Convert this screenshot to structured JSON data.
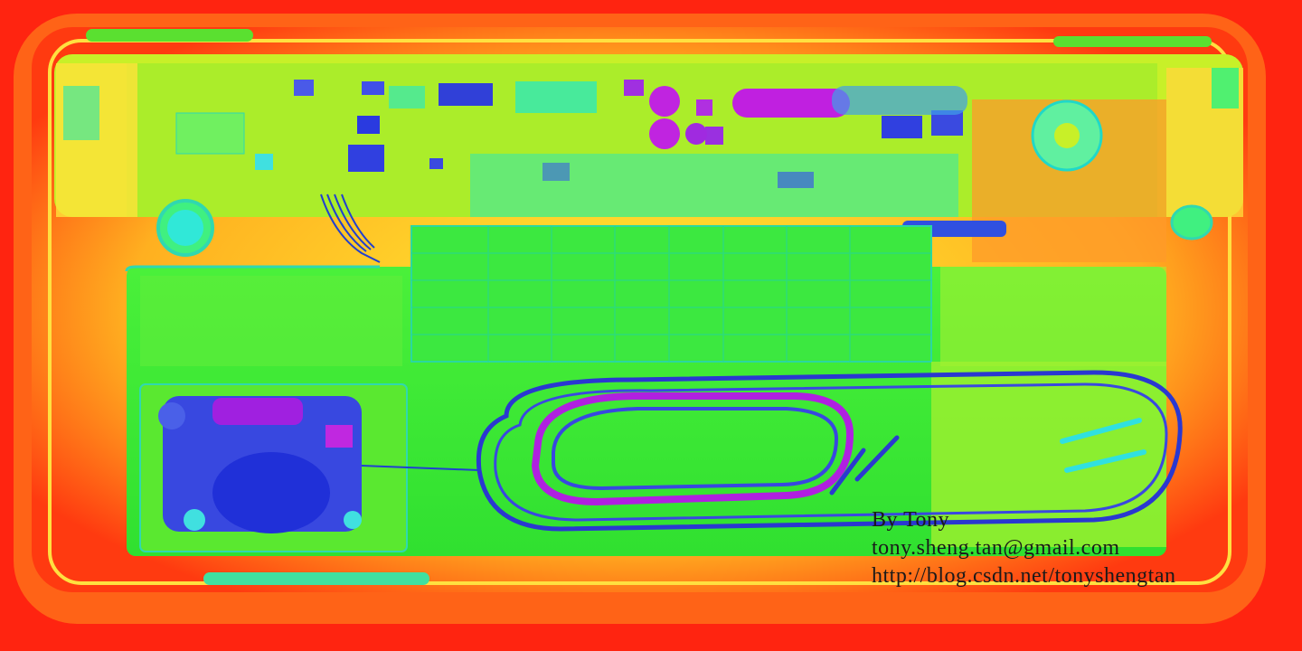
{
  "image": {
    "subject": "xray-false-color-laptop-interior",
    "colors": {
      "background": "#ff2a10",
      "chassis": "#ffcc1a",
      "board": "#b8f020",
      "battery": "#3cf02a",
      "components_dark": "#3040e0",
      "components_magenta": "#c020e0",
      "cyan": "#20e0d0"
    }
  },
  "watermark": {
    "author": "By Tony",
    "email": "tony.sheng.tan@gmail.com",
    "url": "http://blog.csdn.net/tonyshengtan"
  }
}
